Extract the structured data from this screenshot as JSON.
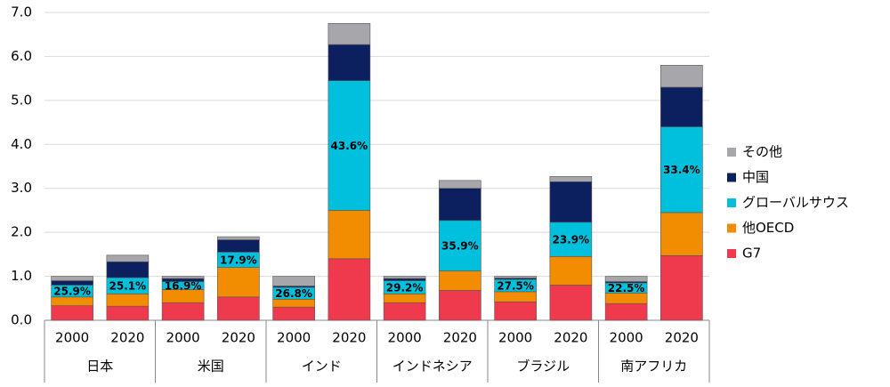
{
  "chart_data": {
    "type": "stacked-bar",
    "groups": [
      "日本",
      "米国",
      "インド",
      "インドネシア",
      "ブラジル",
      "南アフリカ"
    ],
    "categories": [
      "2000",
      "2020",
      "2000",
      "2020",
      "2000",
      "2020",
      "2000",
      "2020",
      "2000",
      "2020",
      "2000",
      "2020"
    ],
    "series": [
      {
        "name": "G7",
        "color": "#ef3a4e",
        "values": [
          0.33,
          0.32,
          0.4,
          0.53,
          0.3,
          1.4,
          0.4,
          0.68,
          0.42,
          0.8,
          0.38,
          1.47
        ]
      },
      {
        "name": "他OECD",
        "color": "#f28c00",
        "values": [
          0.2,
          0.28,
          0.3,
          0.67,
          0.18,
          1.1,
          0.2,
          0.44,
          0.23,
          0.65,
          0.24,
          0.98
        ]
      },
      {
        "name": "グローバルサウス",
        "color": "#00c0de",
        "values": [
          0.27,
          0.37,
          0.18,
          0.35,
          0.27,
          2.95,
          0.3,
          1.15,
          0.28,
          0.78,
          0.23,
          1.95
        ]
      },
      {
        "name": "中国",
        "color": "#0c1f5e",
        "values": [
          0.1,
          0.36,
          0.07,
          0.28,
          0.03,
          0.82,
          0.05,
          0.73,
          0.03,
          0.92,
          0.03,
          0.9
        ]
      },
      {
        "name": "その他",
        "color": "#a7a6ab",
        "values": [
          0.1,
          0.15,
          0.05,
          0.07,
          0.22,
          0.48,
          0.05,
          0.18,
          0.04,
          0.12,
          0.12,
          0.5
        ]
      }
    ],
    "annotations": [
      "25.9%",
      "25.1%",
      "16.9%",
      "17.9%",
      "26.8%",
      "43.6%",
      "29.2%",
      "35.9%",
      "27.5%",
      "23.9%",
      "22.5%",
      "33.4%"
    ],
    "ylim": [
      0,
      7
    ],
    "yticks": [
      {
        "value": 0,
        "label": "0.0"
      },
      {
        "value": 1,
        "label": "1.0"
      },
      {
        "value": 2,
        "label": "2.0"
      },
      {
        "value": 3,
        "label": "3.0"
      },
      {
        "value": 4,
        "label": "4.0"
      },
      {
        "value": 5,
        "label": "5.0"
      },
      {
        "value": 6,
        "label": "6.0"
      },
      {
        "value": 7,
        "label": "7.0"
      }
    ],
    "grid": true,
    "legend": "right"
  }
}
